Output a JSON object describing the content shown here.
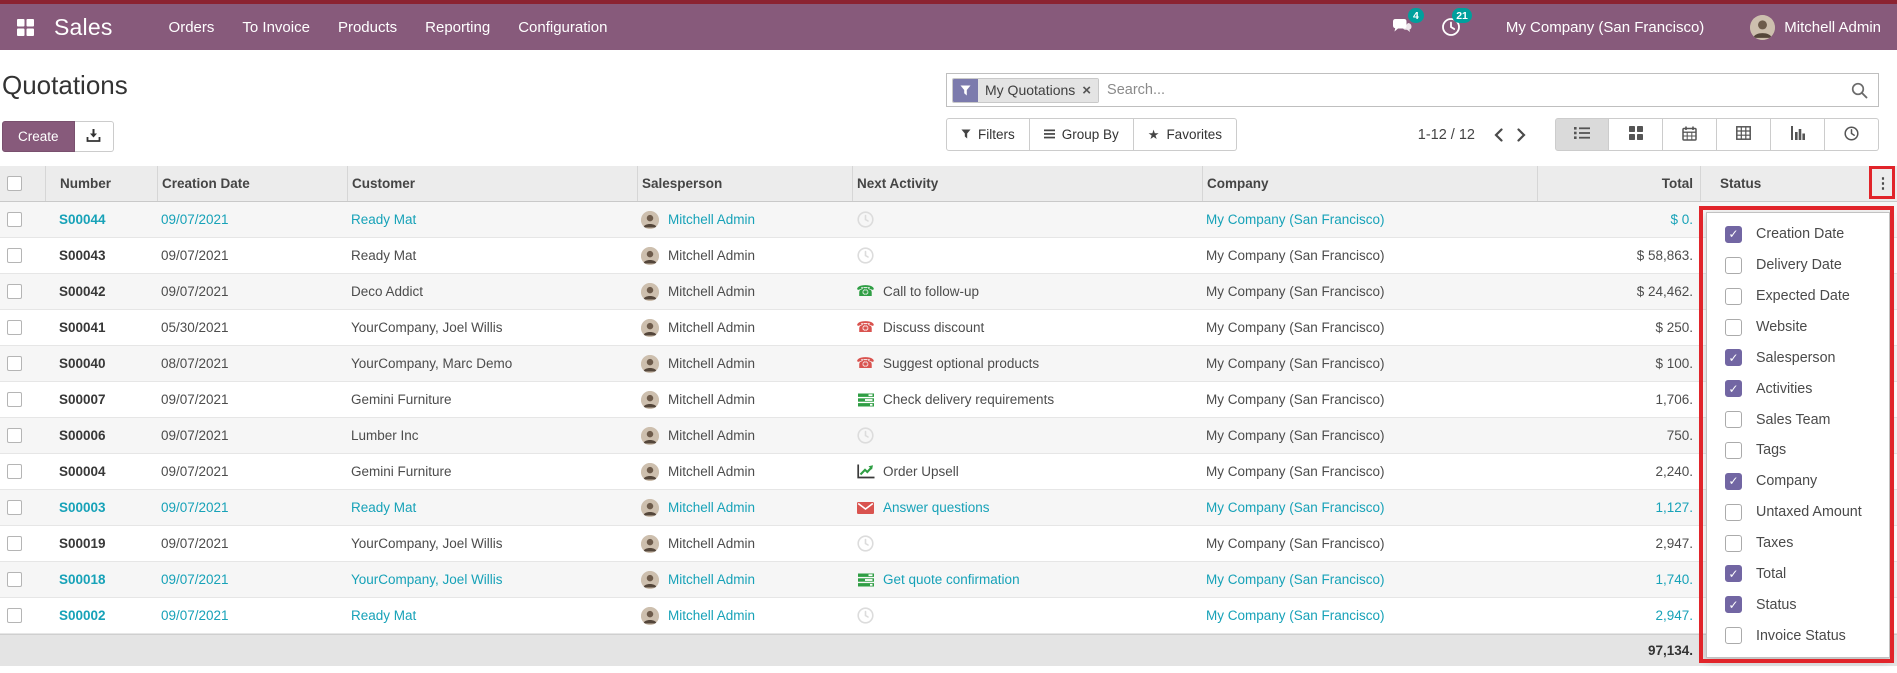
{
  "nav": {
    "app_name": "Sales",
    "menus": [
      "Orders",
      "To Invoice",
      "Products",
      "Reporting",
      "Configuration"
    ],
    "messages_badge": "4",
    "activities_badge": "21",
    "company": "My Company (San Francisco)",
    "user": "Mitchell Admin"
  },
  "page": {
    "title": "Quotations",
    "create_label": "Create"
  },
  "search": {
    "facet_label": "My Quotations",
    "placeholder": "Search..."
  },
  "toolbar": {
    "filters_label": "Filters",
    "group_by_label": "Group By",
    "favorites_label": "Favorites"
  },
  "pager": {
    "range": "1-12 / 12"
  },
  "view_switcher": [
    "list",
    "kanban",
    "calendar",
    "pivot",
    "graph",
    "activity"
  ],
  "table": {
    "columns": [
      "Number",
      "Creation Date",
      "Customer",
      "Salesperson",
      "Next Activity",
      "Company",
      "Total",
      "Status"
    ],
    "rows": [
      {
        "number": "S00044",
        "creation_date": "09/07/2021",
        "customer": "Ready Mat",
        "salesperson": "Mitchell Admin",
        "activity_icon": "clock",
        "activity": "",
        "company": "My Company (San Francisco)",
        "total": "$ 0.",
        "highlight": true
      },
      {
        "number": "S00043",
        "creation_date": "09/07/2021",
        "customer": "Ready Mat",
        "salesperson": "Mitchell Admin",
        "activity_icon": "clock",
        "activity": "",
        "company": "My Company (San Francisco)",
        "total": "$ 58,863.",
        "highlight": false
      },
      {
        "number": "S00042",
        "creation_date": "09/07/2021",
        "customer": "Deco Addict",
        "salesperson": "Mitchell Admin",
        "activity_icon": "phone-green",
        "activity": "Call to follow-up",
        "company": "My Company (San Francisco)",
        "total": "$ 24,462.",
        "highlight": false
      },
      {
        "number": "S00041",
        "creation_date": "05/30/2021",
        "customer": "YourCompany, Joel Willis",
        "salesperson": "Mitchell Admin",
        "activity_icon": "phone-red",
        "activity": "Discuss discount",
        "company": "My Company (San Francisco)",
        "total": "$ 250.",
        "highlight": false
      },
      {
        "number": "S00040",
        "creation_date": "08/07/2021",
        "customer": "YourCompany, Marc Demo",
        "salesperson": "Mitchell Admin",
        "activity_icon": "phone-red",
        "activity": "Suggest optional products",
        "company": "My Company (San Francisco)",
        "total": "$ 100.",
        "highlight": false
      },
      {
        "number": "S00007",
        "creation_date": "09/07/2021",
        "customer": "Gemini Furniture",
        "salesperson": "Mitchell Admin",
        "activity_icon": "tasks-green",
        "activity": "Check delivery requirements",
        "company": "My Company (San Francisco)",
        "total": "1,706.",
        "highlight": false
      },
      {
        "number": "S00006",
        "creation_date": "09/07/2021",
        "customer": "Lumber Inc",
        "salesperson": "Mitchell Admin",
        "activity_icon": "clock",
        "activity": "",
        "company": "My Company (San Francisco)",
        "total": "750.",
        "highlight": false
      },
      {
        "number": "S00004",
        "creation_date": "09/07/2021",
        "customer": "Gemini Furniture",
        "salesperson": "Mitchell Admin",
        "activity_icon": "chart-green",
        "activity": "Order Upsell",
        "company": "My Company (San Francisco)",
        "total": "2,240.",
        "highlight": false
      },
      {
        "number": "S00003",
        "creation_date": "09/07/2021",
        "customer": "Ready Mat",
        "salesperson": "Mitchell Admin",
        "activity_icon": "envelope-red",
        "activity": "Answer questions",
        "company": "My Company (San Francisco)",
        "total": "1,127.",
        "highlight": true
      },
      {
        "number": "S00019",
        "creation_date": "09/07/2021",
        "customer": "YourCompany, Joel Willis",
        "salesperson": "Mitchell Admin",
        "activity_icon": "clock",
        "activity": "",
        "company": "My Company (San Francisco)",
        "total": "2,947.",
        "highlight": false
      },
      {
        "number": "S00018",
        "creation_date": "09/07/2021",
        "customer": "YourCompany, Joel Willis",
        "salesperson": "Mitchell Admin",
        "activity_icon": "tasks-green",
        "activity": "Get quote confirmation",
        "company": "My Company (San Francisco)",
        "total": "1,740.",
        "highlight": true
      },
      {
        "number": "S00002",
        "creation_date": "09/07/2021",
        "customer": "Ready Mat",
        "salesperson": "Mitchell Admin",
        "activity_icon": "clock",
        "activity": "",
        "company": "My Company (San Francisco)",
        "total": "2,947.",
        "highlight": true
      }
    ],
    "footer_total": "97,134."
  },
  "column_dropdown": {
    "items": [
      {
        "label": "Creation Date",
        "checked": true
      },
      {
        "label": "Delivery Date",
        "checked": false
      },
      {
        "label": "Expected Date",
        "checked": false
      },
      {
        "label": "Website",
        "checked": false
      },
      {
        "label": "Salesperson",
        "checked": true
      },
      {
        "label": "Activities",
        "checked": true
      },
      {
        "label": "Sales Team",
        "checked": false
      },
      {
        "label": "Tags",
        "checked": false
      },
      {
        "label": "Company",
        "checked": true
      },
      {
        "label": "Untaxed Amount",
        "checked": false
      },
      {
        "label": "Taxes",
        "checked": false
      },
      {
        "label": "Total",
        "checked": true
      },
      {
        "label": "Status",
        "checked": true
      },
      {
        "label": "Invoice Status",
        "checked": false
      }
    ]
  },
  "colors": {
    "nav_purple": "#875A7B",
    "top_strip": "#8b2332",
    "badge_teal": "#00A09D",
    "highlight_blue": "#17a2b8",
    "annotation_red": "#e1242a",
    "checkbox_purple": "#7266a3"
  }
}
